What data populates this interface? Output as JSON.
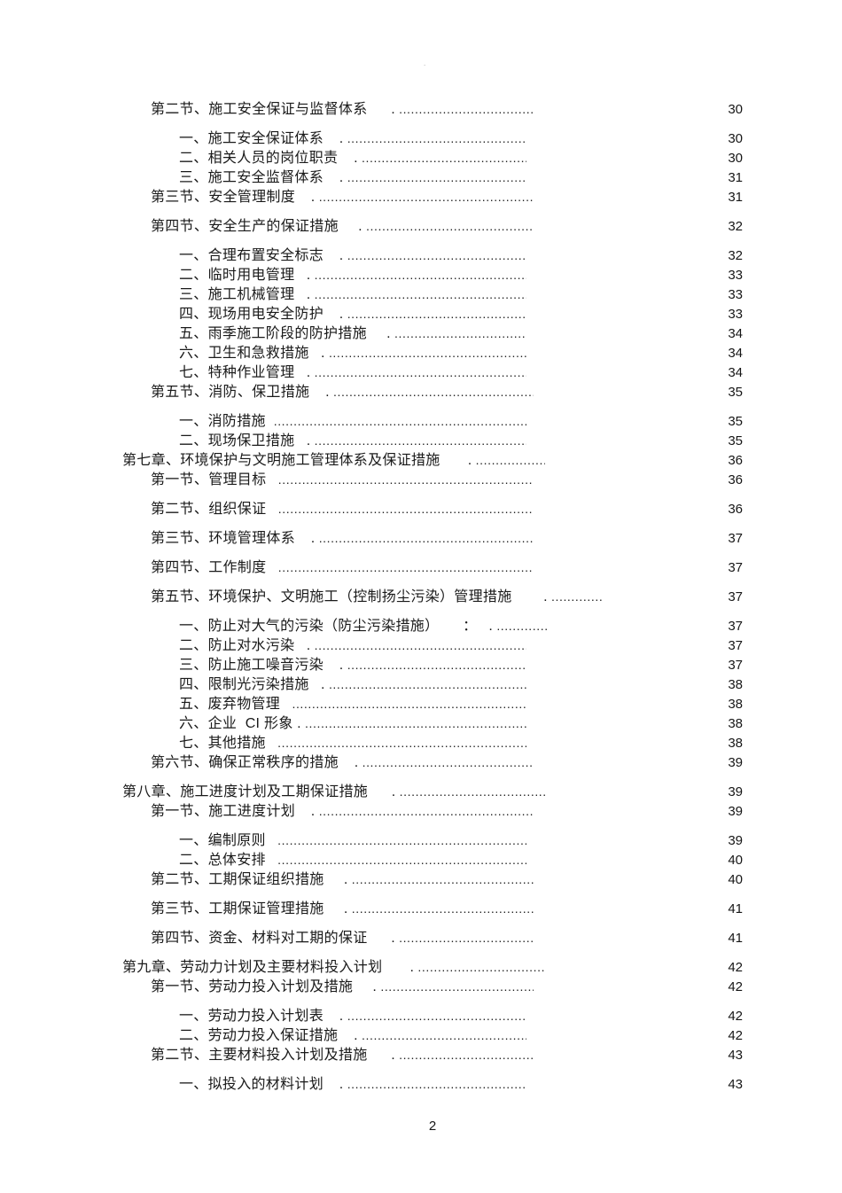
{
  "page": {
    "background": "#ffffff",
    "text_color": "#1a1a1a",
    "stray_mark": "."
  },
  "footer": {
    "page_number": "2"
  },
  "toc": {
    "leader_char": ".",
    "entries": [
      {
        "level": "section",
        "title": "第二节、施工安全保证与监督体系",
        "separator": "      . ",
        "page": "30",
        "gap": false
      },
      {
        "level": "item",
        "title": "一、施工安全保证体系",
        "separator": "    . ",
        "page": "30",
        "gap": true
      },
      {
        "level": "item",
        "title": "二、相关人员的岗位职责",
        "separator": "    . ",
        "page": "30",
        "gap": false
      },
      {
        "level": "item",
        "title": "三、施工安全监督体系",
        "separator": "    . ",
        "page": "31",
        "gap": false
      },
      {
        "level": "section",
        "title": "第三节、安全管理制度",
        "separator": "    . ",
        "page": "31",
        "gap": false
      },
      {
        "level": "section",
        "title": "第四节、安全生产的保证措施",
        "separator": "     . ",
        "page": "32",
        "gap": true
      },
      {
        "level": "item",
        "title": "一、合理布置安全标志",
        "separator": "    . ",
        "page": "32",
        "gap": true
      },
      {
        "level": "item",
        "title": "二、临时用电管理",
        "separator": "   . ",
        "page": "33",
        "gap": false
      },
      {
        "level": "item",
        "title": "三、施工机械管理",
        "separator": "   . ",
        "page": "33",
        "gap": false
      },
      {
        "level": "item",
        "title": "四、现场用电安全防护",
        "separator": "    . ",
        "page": "33",
        "gap": false
      },
      {
        "level": "item",
        "title": "五、雨季施工阶段的防护措施",
        "separator": "     . ",
        "page": "34",
        "gap": false
      },
      {
        "level": "item",
        "title": "六、卫生和急救措施",
        "separator": "   . ",
        "page": "34",
        "gap": false
      },
      {
        "level": "item",
        "title": "七、特种作业管理",
        "separator": "   . ",
        "page": "34",
        "gap": false
      },
      {
        "level": "section",
        "title": "第五节、消防、保卫措施",
        "separator": "    . ",
        "page": "35",
        "gap": false
      },
      {
        "level": "item",
        "title": "一、消防措施",
        "separator": "  ",
        "page": "35",
        "gap": true
      },
      {
        "level": "item",
        "title": "二、现场保卫措施",
        "separator": "   . ",
        "page": "35",
        "gap": false
      },
      {
        "level": "chapter",
        "title": "第七章、环境保护与文明施工管理体系及保证措施",
        "separator": "       . ",
        "page": "36",
        "gap": false
      },
      {
        "level": "section",
        "title": "第一节、管理目标",
        "separator": "   ",
        "page": "36",
        "gap": false
      },
      {
        "level": "section",
        "title": "第二节、组织保证",
        "separator": "   ",
        "page": "36",
        "gap": true
      },
      {
        "level": "section",
        "title": "第三节、环境管理体系",
        "separator": "    . ",
        "page": "37",
        "gap": true
      },
      {
        "level": "section",
        "title": "第四节、工作制度",
        "separator": "   ",
        "page": "37",
        "gap": true
      },
      {
        "level": "section",
        "title": "第五节、环境保护、文明施工（控制扬尘污染）管理措施",
        "separator": "        . ",
        "page": "37",
        "gap": true
      },
      {
        "level": "item",
        "title": "一、防止对大气的污染（防尘污染措施）",
        "separator": "      ：   . ",
        "page": "37",
        "gap": true
      },
      {
        "level": "item",
        "title": "二、防止对水污染",
        "separator": "   . ",
        "page": "37",
        "gap": false
      },
      {
        "level": "item",
        "title": "三、防止施工噪音污染",
        "separator": "    . ",
        "page": "37",
        "gap": false
      },
      {
        "level": "item",
        "title": "四、限制光污染措施",
        "separator": "   . ",
        "page": "38",
        "gap": false
      },
      {
        "level": "item",
        "title": "五、废弃物管理",
        "separator": "   ",
        "page": "38",
        "gap": false
      },
      {
        "level": "item",
        "title": "六、企业  CI 形象",
        "separator": " . ",
        "page": "38",
        "gap": false
      },
      {
        "level": "item",
        "title": "七、其他措施",
        "separator": "   ",
        "page": "38",
        "gap": false
      },
      {
        "level": "section",
        "title": "第六节、确保正常秩序的措施",
        "separator": "    . ",
        "page": "39",
        "gap": false
      },
      {
        "level": "chapter",
        "title": "第八章、施工进度计划及工期保证措施",
        "separator": "      . ",
        "page": "39",
        "gap": true
      },
      {
        "level": "section",
        "title": "第一节、施工进度计划",
        "separator": "    . ",
        "page": "39",
        "gap": false
      },
      {
        "level": "item",
        "title": "一、编制原则",
        "separator": "   ",
        "page": "39",
        "gap": true
      },
      {
        "level": "item",
        "title": "二、总体安排",
        "separator": "   ",
        "page": "40",
        "gap": false
      },
      {
        "level": "section",
        "title": "第二节、工期保证组织措施",
        "separator": "     . ",
        "page": "40",
        "gap": false
      },
      {
        "level": "section",
        "title": "第三节、工期保证管理措施",
        "separator": "     . ",
        "page": "41",
        "gap": true
      },
      {
        "level": "section",
        "title": "第四节、资金、材料对工期的保证",
        "separator": "      . ",
        "page": "41",
        "gap": true
      },
      {
        "level": "chapter",
        "title": "第九章、劳动力计划及主要材料投入计划",
        "separator": "       . ",
        "page": "42",
        "gap": true
      },
      {
        "level": "section",
        "title": "第一节、劳动力投入计划及措施",
        "separator": "     . ",
        "page": "42",
        "gap": false
      },
      {
        "level": "item",
        "title": "一、劳动力投入计划表",
        "separator": "    . ",
        "page": "42",
        "gap": true
      },
      {
        "level": "item",
        "title": "二、劳动力投入保证措施",
        "separator": "    . ",
        "page": "42",
        "gap": false
      },
      {
        "level": "section",
        "title": "第二节、主要材料投入计划及措施",
        "separator": "      . ",
        "page": "43",
        "gap": false
      },
      {
        "level": "item",
        "title": "一、拟投入的材料计划",
        "separator": "    . ",
        "page": "43",
        "gap": true
      }
    ]
  }
}
